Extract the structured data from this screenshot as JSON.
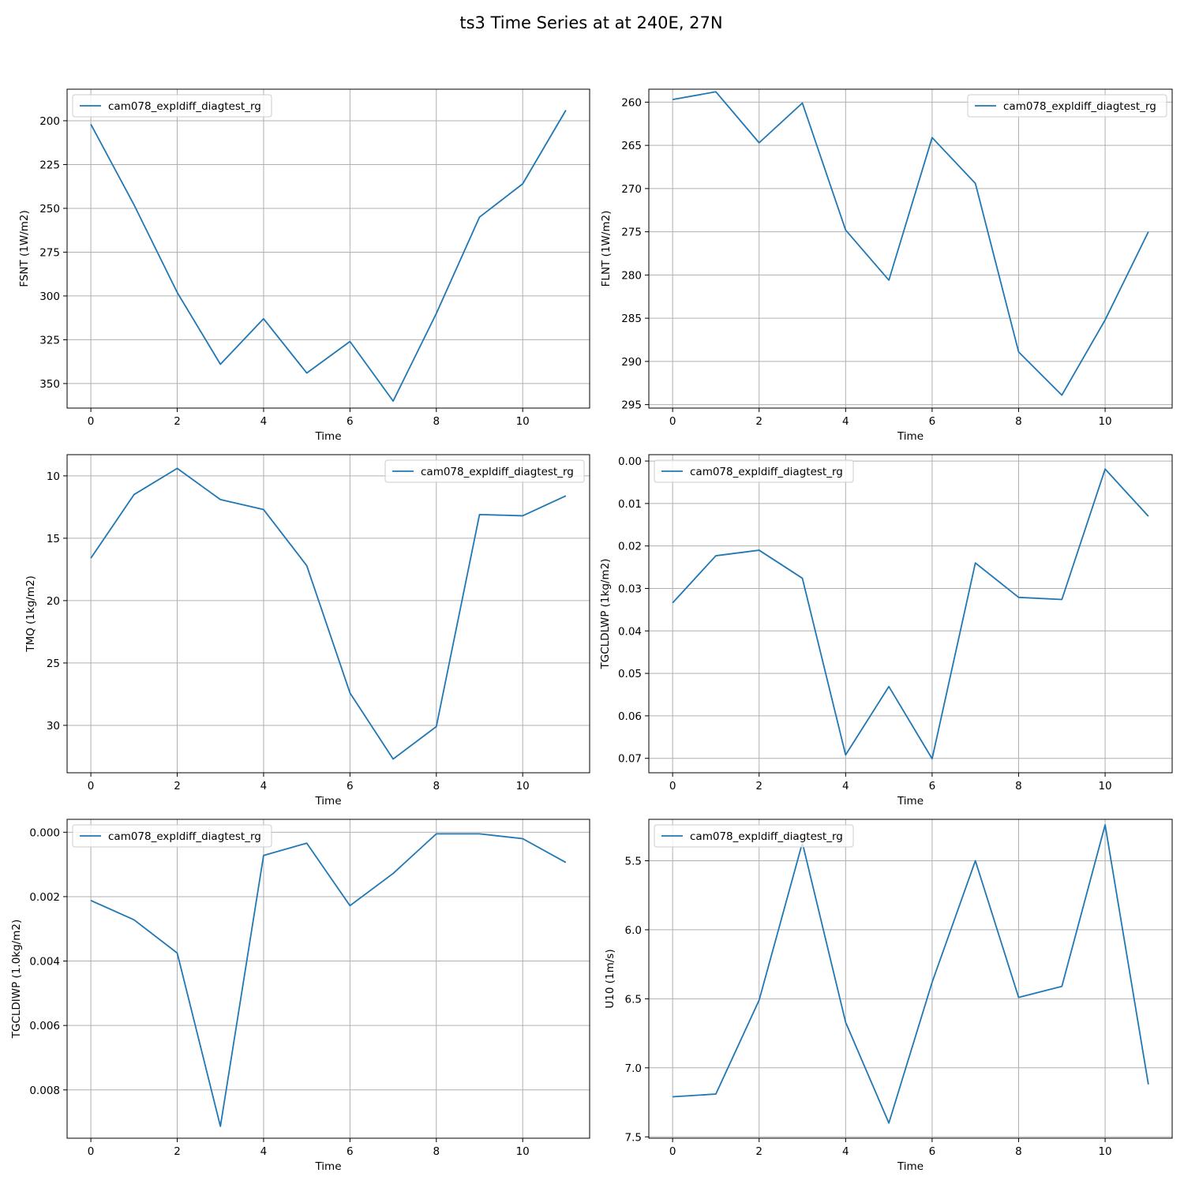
{
  "figure": {
    "title": "ts3 Time Series at at 240E, 27N",
    "line_color": "#1f77b4",
    "grid_color": "#b0b0b0"
  },
  "chart_data": [
    {
      "type": "line",
      "xlabel": "Time",
      "ylabel": "FSNT (1W/m2)",
      "xlim": [
        -0.55,
        11.55
      ],
      "ylim": [
        364,
        182
      ],
      "y_inverted": true,
      "xticks": [
        0,
        2,
        4,
        6,
        8,
        10
      ],
      "yticks": [
        200,
        225,
        250,
        275,
        300,
        325,
        350
      ],
      "grid": true,
      "legend_loc": "upper left",
      "series": [
        {
          "name": "cam078_expldiff_diagtest_rg",
          "x": [
            0,
            1,
            2,
            3,
            4,
            5,
            6,
            7,
            8,
            9,
            10,
            11
          ],
          "y": [
            202,
            248,
            298,
            339,
            313,
            344,
            326,
            360,
            310,
            255,
            236,
            194
          ]
        }
      ]
    },
    {
      "type": "line",
      "xlabel": "Time",
      "ylabel": "FLNT (1W/m2)",
      "xlim": [
        -0.55,
        11.55
      ],
      "ylim": [
        295.4,
        258.5
      ],
      "y_inverted": true,
      "xticks": [
        0,
        2,
        4,
        6,
        8,
        10
      ],
      "yticks": [
        260,
        265,
        270,
        275,
        280,
        285,
        290,
        295
      ],
      "grid": true,
      "legend_loc": "upper right",
      "series": [
        {
          "name": "cam078_expldiff_diagtest_rg",
          "x": [
            0,
            1,
            2,
            3,
            4,
            5,
            6,
            7,
            8,
            9,
            10,
            11
          ],
          "y": [
            259.7,
            258.8,
            264.7,
            260.1,
            274.8,
            280.6,
            264.1,
            269.4,
            288.9,
            293.9,
            285.2,
            275.0
          ]
        }
      ]
    },
    {
      "type": "line",
      "xlabel": "Time",
      "ylabel": "TMQ (1kg/m2)",
      "xlim": [
        -0.55,
        11.55
      ],
      "ylim": [
        33.8,
        8.3
      ],
      "y_inverted": true,
      "xticks": [
        0,
        2,
        4,
        6,
        8,
        10
      ],
      "yticks": [
        10,
        15,
        20,
        25,
        30
      ],
      "grid": true,
      "legend_loc": "upper right",
      "series": [
        {
          "name": "cam078_expldiff_diagtest_rg",
          "x": [
            0,
            1,
            2,
            3,
            4,
            5,
            6,
            7,
            8,
            9,
            10,
            11
          ],
          "y": [
            16.6,
            11.5,
            9.4,
            11.9,
            12.7,
            17.2,
            27.4,
            32.7,
            30.1,
            13.1,
            13.2,
            11.6
          ]
        }
      ]
    },
    {
      "type": "line",
      "xlabel": "Time",
      "ylabel": "TGCLDLWP (1kg/m2)",
      "xlim": [
        -0.55,
        11.55
      ],
      "ylim": [
        0.0734,
        -0.0015
      ],
      "y_inverted": true,
      "xticks": [
        0,
        2,
        4,
        6,
        8,
        10
      ],
      "yticks": [
        0.0,
        0.01,
        0.02,
        0.03,
        0.04,
        0.05,
        0.06,
        0.07
      ],
      "ytick_labels": [
        "0.00",
        "0.01",
        "0.02",
        "0.03",
        "0.04",
        "0.05",
        "0.06",
        "0.07"
      ],
      "grid": true,
      "legend_loc": "upper left",
      "series": [
        {
          "name": "cam078_expldiff_diagtest_rg",
          "x": [
            0,
            1,
            2,
            3,
            4,
            5,
            6,
            7,
            8,
            9,
            10,
            11
          ],
          "y": [
            0.0334,
            0.0223,
            0.021,
            0.0276,
            0.0692,
            0.0531,
            0.0701,
            0.024,
            0.0321,
            0.0326,
            0.0019,
            0.013
          ]
        }
      ]
    },
    {
      "type": "line",
      "xlabel": "Time",
      "ylabel": "TGCLDIWP (1.0kg/m2)",
      "xlim": [
        -0.55,
        11.55
      ],
      "ylim": [
        0.0095,
        -0.0004
      ],
      "y_inverted": true,
      "xticks": [
        0,
        2,
        4,
        6,
        8,
        10
      ],
      "yticks": [
        0.0,
        0.002,
        0.004,
        0.006,
        0.008
      ],
      "ytick_labels": [
        "0.000",
        "0.002",
        "0.004",
        "0.006",
        "0.008"
      ],
      "grid": true,
      "legend_loc": "upper left",
      "series": [
        {
          "name": "cam078_expldiff_diagtest_rg",
          "x": [
            0,
            1,
            2,
            3,
            4,
            5,
            6,
            7,
            8,
            9,
            10,
            11
          ],
          "y": [
            0.00212,
            0.00272,
            0.00375,
            0.00913,
            0.00072,
            0.00034,
            0.00228,
            0.00128,
            5e-05,
            5e-05,
            0.0002,
            0.00094
          ]
        }
      ]
    },
    {
      "type": "line",
      "xlabel": "Time",
      "ylabel": "U10 (1m/s)",
      "xlim": [
        -0.55,
        11.55
      ],
      "ylim": [
        7.51,
        5.2
      ],
      "y_inverted": true,
      "xticks": [
        0,
        2,
        4,
        6,
        8,
        10
      ],
      "yticks": [
        5.5,
        6.0,
        6.5,
        7.0,
        7.5
      ],
      "ytick_labels": [
        "5.5",
        "6.0",
        "6.5",
        "7.0",
        "7.5"
      ],
      "grid": true,
      "legend_loc": "upper left",
      "series": [
        {
          "name": "cam078_expldiff_diagtest_rg",
          "x": [
            0,
            1,
            2,
            3,
            4,
            5,
            6,
            7,
            8,
            9,
            10,
            11
          ],
          "y": [
            7.21,
            7.19,
            6.51,
            5.37,
            6.67,
            7.4,
            6.38,
            5.5,
            6.49,
            6.41,
            5.24,
            7.12
          ]
        }
      ]
    }
  ]
}
